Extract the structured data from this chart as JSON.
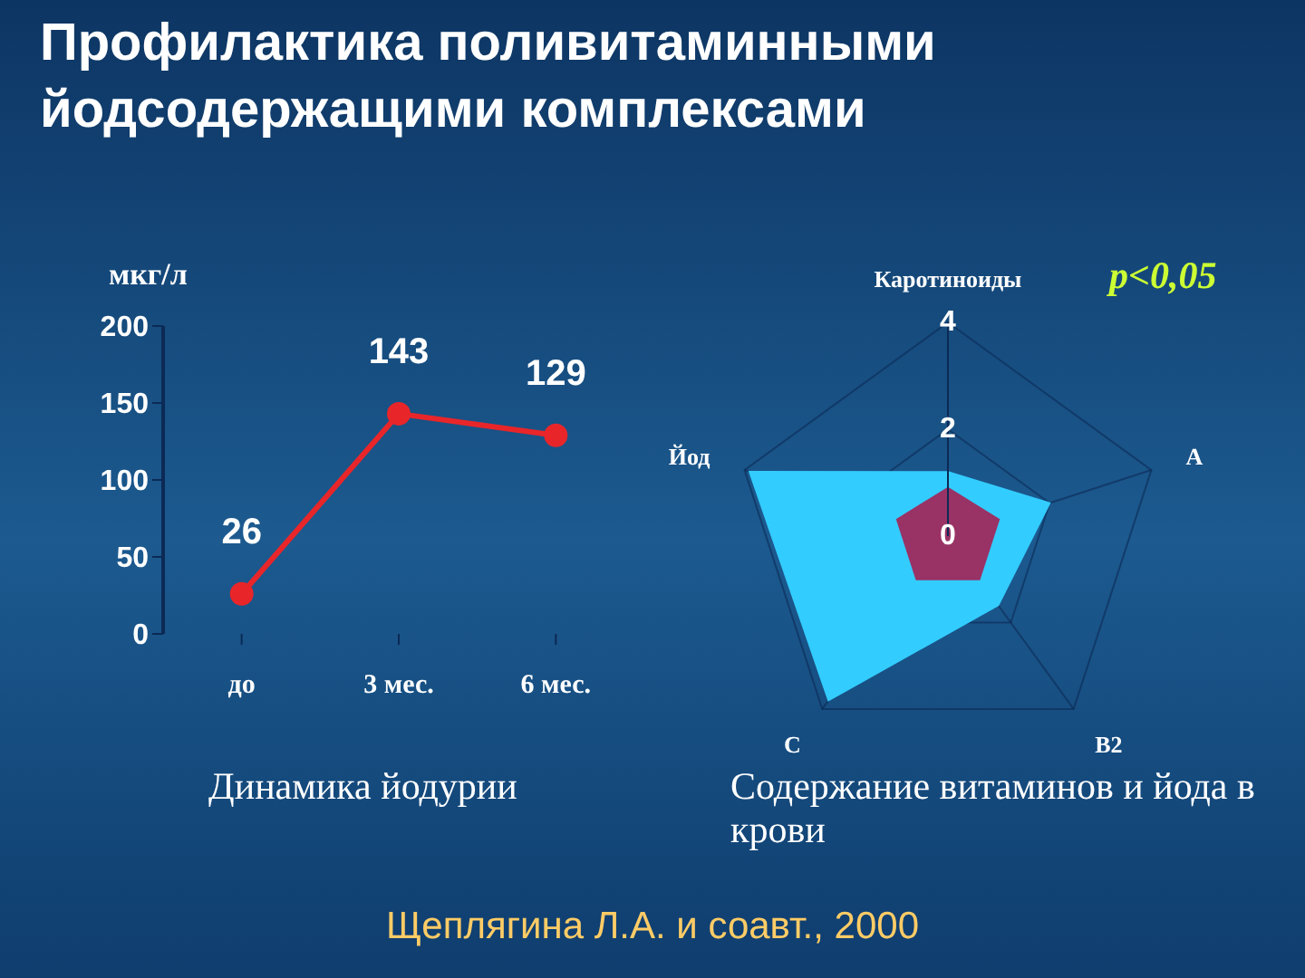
{
  "chart_data": [
    {
      "type": "line",
      "title": "Профилактика поливитаминными йодсодержащими комплексами",
      "subtitle": "Динамика йодурии",
      "ylabel": "мкг/л",
      "categories": [
        "до",
        "3 мес.",
        "6 мес."
      ],
      "series": [
        {
          "color": "#e8262a",
          "values": [
            26,
            143,
            129
          ]
        }
      ],
      "ylim": [
        0,
        200
      ],
      "yticks": [
        0,
        50,
        100,
        150,
        200
      ],
      "data_labels": true,
      "marker": "circle",
      "grid": false,
      "legend": false,
      "annotations": [
        "Щеплягина Л.А. и соавт., 2000"
      ]
    },
    {
      "type": "radar",
      "title": "Содержание витаминов и йода в крови",
      "categories": [
        "Каротиноиды",
        "A",
        "B2",
        "C",
        "Йод"
      ],
      "series": [
        {
          "color": "#33ccff",
          "values": [
            1.2,
            2.0,
            1.6,
            3.8,
            3.9
          ]
        },
        {
          "color": "#993366",
          "values": [
            0.9,
            1.0,
            1.0,
            1.0,
            1.0
          ]
        }
      ],
      "ylim": [
        0,
        4
      ],
      "yticks": [
        0,
        2,
        4
      ],
      "grid": true,
      "legend": false,
      "annotations": [
        "p<0,05"
      ]
    }
  ]
}
